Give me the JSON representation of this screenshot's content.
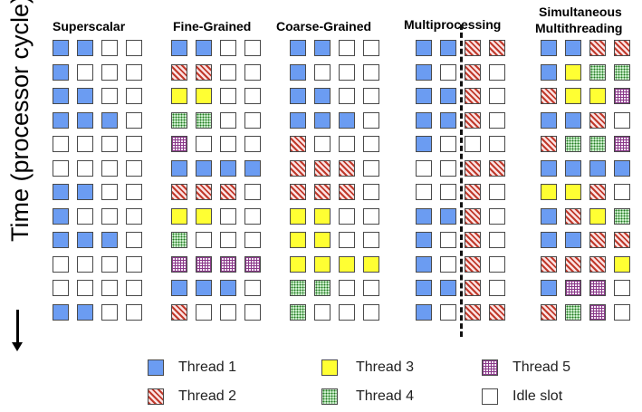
{
  "y_axis_label": "Time (processor cycle)",
  "columns": [
    {
      "title": "Superscalar",
      "rows": [
        [
          "t1",
          "t1",
          "idle",
          "idle"
        ],
        [
          "t1",
          "idle",
          "idle",
          "idle"
        ],
        [
          "t1",
          "t1",
          "idle",
          "idle"
        ],
        [
          "t1",
          "t1",
          "t1",
          "idle"
        ],
        [
          "idle",
          "idle",
          "idle",
          "idle"
        ],
        [
          "idle",
          "idle",
          "idle",
          "idle"
        ],
        [
          "t1",
          "t1",
          "idle",
          "idle"
        ],
        [
          "t1",
          "idle",
          "idle",
          "idle"
        ],
        [
          "t1",
          "t1",
          "t1",
          "idle"
        ],
        [
          "idle",
          "idle",
          "idle",
          "idle"
        ],
        [
          "idle",
          "idle",
          "idle",
          "idle"
        ],
        [
          "t1",
          "t1",
          "idle",
          "idle"
        ]
      ]
    },
    {
      "title": "Fine-Grained",
      "rows": [
        [
          "t1",
          "t1",
          "idle",
          "idle"
        ],
        [
          "t2",
          "t2",
          "idle",
          "idle"
        ],
        [
          "t3",
          "t3",
          "idle",
          "idle"
        ],
        [
          "t4",
          "t4",
          "idle",
          "idle"
        ],
        [
          "t5",
          "idle",
          "idle",
          "idle"
        ],
        [
          "t1",
          "t1",
          "t1",
          "t1"
        ],
        [
          "t2",
          "t2",
          "t2",
          "idle"
        ],
        [
          "t3",
          "t3",
          "idle",
          "idle"
        ],
        [
          "t4",
          "idle",
          "idle",
          "idle"
        ],
        [
          "t5",
          "t5",
          "t5",
          "t5"
        ],
        [
          "t1",
          "t1",
          "t1",
          "idle"
        ],
        [
          "t2",
          "idle",
          "idle",
          "idle"
        ]
      ]
    },
    {
      "title": "Coarse-Grained",
      "rows": [
        [
          "t1",
          "t1",
          "idle",
          "idle"
        ],
        [
          "t1",
          "idle",
          "idle",
          "idle"
        ],
        [
          "t1",
          "t1",
          "idle",
          "idle"
        ],
        [
          "t1",
          "t1",
          "t1",
          "idle"
        ],
        [
          "t2",
          "idle",
          "idle",
          "idle"
        ],
        [
          "t2",
          "t2",
          "t2",
          "idle"
        ],
        [
          "t2",
          "t2",
          "t2",
          "idle"
        ],
        [
          "t3",
          "t3",
          "idle",
          "idle"
        ],
        [
          "t3",
          "t3",
          "idle",
          "idle"
        ],
        [
          "t3",
          "t3",
          "t3",
          "t3"
        ],
        [
          "t4",
          "t4",
          "idle",
          "idle"
        ],
        [
          "t4",
          "idle",
          "idle",
          "idle"
        ]
      ]
    },
    {
      "title": "Multiprocessing",
      "rows": [
        [
          "t1",
          "t1",
          "t2",
          "t2"
        ],
        [
          "t1",
          "idle",
          "t2",
          "idle"
        ],
        [
          "t1",
          "t1",
          "t2",
          "idle"
        ],
        [
          "t1",
          "t1",
          "t2",
          "idle"
        ],
        [
          "t1",
          "idle",
          "idle",
          "idle"
        ],
        [
          "idle",
          "idle",
          "t2",
          "t2"
        ],
        [
          "idle",
          "idle",
          "t2",
          "idle"
        ],
        [
          "t1",
          "t1",
          "t2",
          "idle"
        ],
        [
          "t1",
          "idle",
          "t2",
          "idle"
        ],
        [
          "t1",
          "idle",
          "t2",
          "idle"
        ],
        [
          "t1",
          "t1",
          "t2",
          "idle"
        ],
        [
          "t1",
          "idle",
          "t2",
          "t2"
        ]
      ]
    },
    {
      "title_line1": "Simultaneous",
      "title_line2": "Multithreading",
      "rows": [
        [
          "t1",
          "t1",
          "t2",
          "t2"
        ],
        [
          "t1",
          "t3",
          "t4",
          "t4"
        ],
        [
          "t2",
          "t3",
          "t3",
          "t5"
        ],
        [
          "t1",
          "t1",
          "t2",
          "idle"
        ],
        [
          "t2",
          "t4",
          "t4",
          "t5"
        ],
        [
          "t1",
          "t1",
          "t1",
          "t1"
        ],
        [
          "t3",
          "t3",
          "t2",
          "idle"
        ],
        [
          "t1",
          "t2",
          "t3",
          "t4"
        ],
        [
          "t1",
          "t1",
          "t2",
          "t2"
        ],
        [
          "t2",
          "t2",
          "t2",
          "t3"
        ],
        [
          "t1",
          "t5",
          "t5",
          "idle"
        ],
        [
          "t2",
          "t4",
          "t5",
          "idle"
        ]
      ]
    }
  ],
  "legend": [
    {
      "key": "t1",
      "label": "Thread 1"
    },
    {
      "key": "t2",
      "label": "Thread 2"
    },
    {
      "key": "t3",
      "label": "Thread 3"
    },
    {
      "key": "t4",
      "label": "Thread 4"
    },
    {
      "key": "t5",
      "label": "Thread 5"
    },
    {
      "key": "idle",
      "label": "Idle slot"
    }
  ],
  "colors": {
    "thread1": "#6b9cf2",
    "thread2": "#c0392b",
    "thread3": "#ffff33",
    "thread4": "#1e7a1e",
    "thread5": "#8a3a8a",
    "idle": "#ffffff"
  }
}
